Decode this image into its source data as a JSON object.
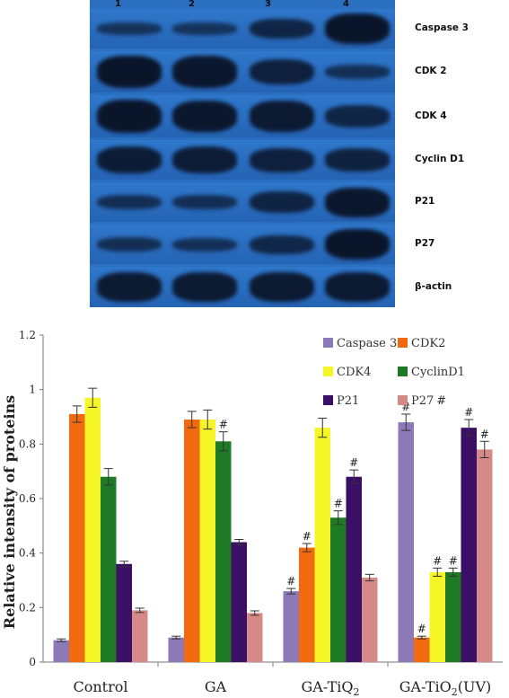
{
  "blot": {
    "lane_numbers": [
      "1",
      "2",
      "3",
      "4"
    ],
    "colors": {
      "background": "#2a6fc0",
      "band": "#0a1428",
      "separator": "#ffffff"
    },
    "rows": [
      {
        "label": "Caspase 3",
        "intensity": [
          0.25,
          0.25,
          0.55,
          0.95
        ]
      },
      {
        "label": "CDK 2",
        "intensity": [
          0.95,
          0.92,
          0.7,
          0.3
        ]
      },
      {
        "label": "CDK 4",
        "intensity": [
          0.95,
          0.9,
          0.85,
          0.55
        ]
      },
      {
        "label": "Cyclin D1",
        "intensity": [
          0.8,
          0.78,
          0.7,
          0.65
        ]
      },
      {
        "label": "P21",
        "intensity": [
          0.35,
          0.35,
          0.6,
          0.9
        ]
      },
      {
        "label": "P27",
        "intensity": [
          0.35,
          0.3,
          0.5,
          0.95
        ]
      },
      {
        "label": "β-actin",
        "intensity": [
          0.85,
          0.85,
          0.85,
          0.85
        ]
      }
    ]
  },
  "chart_data": {
    "type": "bar",
    "ylabel": "Relative intensity of proteins",
    "ylim": [
      0,
      1.2
    ],
    "yticks": [
      "0",
      "0.2",
      "0.4",
      "0.6",
      "0.8",
      "1",
      "1.2"
    ],
    "legend_placement": "top-right",
    "categories": [
      "Control",
      "GA",
      "GA-TiQ2",
      "GA-TiO2(UV)"
    ],
    "category_display": [
      {
        "base": "Control",
        "sub": "",
        "suffix": ""
      },
      {
        "base": "GA",
        "sub": "",
        "suffix": ""
      },
      {
        "base": "GA-TiQ",
        "sub": "2",
        "suffix": ""
      },
      {
        "base": "GA-TiO",
        "sub": "2",
        "suffix": "(UV)"
      }
    ],
    "series": [
      {
        "name": "Caspase 3",
        "color": "#8c7ab8",
        "values": [
          0.08,
          0.09,
          0.26,
          0.88
        ],
        "errors": [
          0.005,
          0.005,
          0.01,
          0.03
        ],
        "marks": [
          "",
          "",
          "#",
          "#"
        ]
      },
      {
        "name": "CDK2",
        "color": "#f26a10",
        "values": [
          0.91,
          0.89,
          0.42,
          0.09
        ],
        "errors": [
          0.03,
          0.03,
          0.015,
          0.005
        ],
        "marks": [
          "",
          "",
          "#",
          "#"
        ]
      },
      {
        "name": "CDK4",
        "color": "#f5f528",
        "values": [
          0.97,
          0.89,
          0.86,
          0.33
        ],
        "errors": [
          0.035,
          0.035,
          0.035,
          0.015
        ],
        "marks": [
          "",
          "",
          "",
          "#"
        ]
      },
      {
        "name": "CyclinD1",
        "color": "#1e7a24",
        "values": [
          0.68,
          0.81,
          0.53,
          0.33
        ],
        "errors": [
          0.03,
          0.035,
          0.025,
          0.015
        ],
        "marks": [
          "",
          "#",
          "#",
          "#"
        ]
      },
      {
        "name": "P21",
        "color": "#3c0f66",
        "values": [
          0.36,
          0.44,
          0.68,
          0.86
        ],
        "errors": [
          0.01,
          0.01,
          0.025,
          0.03
        ],
        "marks": [
          "",
          "",
          "#",
          "#"
        ]
      },
      {
        "name": "P27",
        "color": "#d68a88",
        "values": [
          0.19,
          0.18,
          0.31,
          0.78
        ],
        "errors": [
          0.008,
          0.008,
          0.012,
          0.03
        ],
        "marks": [
          "",
          "",
          "",
          "#"
        ]
      }
    ],
    "legend_suffix": [
      "",
      "",
      "",
      "",
      "",
      "#"
    ]
  }
}
